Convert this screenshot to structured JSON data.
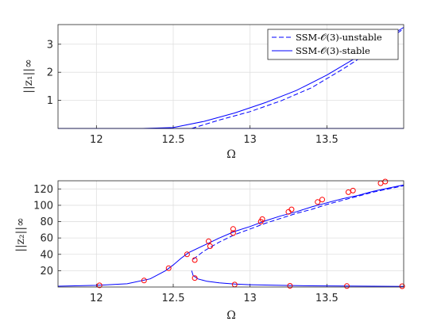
{
  "colors": {
    "curve": "#0000ff",
    "marker": "#ff0000",
    "axis": "#262626",
    "grid": "#dfdfdf"
  },
  "chart_data": [
    {
      "type": "line",
      "xlabel": "Ω",
      "ylabel": "||z₁||∞",
      "xlim": [
        11.75,
        14.0
      ],
      "ylim": [
        0,
        3.7
      ],
      "xticks": [
        12,
        12.5,
        13,
        13.5
      ],
      "xtick_labels": [
        "12",
        "12.5",
        "13",
        "13.5"
      ],
      "yticks": [
        1,
        2,
        3
      ],
      "ytick_labels": [
        "1",
        "2",
        "3"
      ],
      "grid": true,
      "legend_position": "top-right",
      "series": [
        {
          "name": "SSM-𝒪(3)-unstable",
          "style": "dashed",
          "x": [
            12.62,
            12.8,
            13.0,
            13.2,
            13.4,
            13.6,
            13.8,
            14.0
          ],
          "y": [
            0.0,
            0.3,
            0.6,
            0.98,
            1.45,
            2.1,
            2.8,
            3.55
          ]
        },
        {
          "name": "SSM-𝒪(3)-stable",
          "style": "solid",
          "x": [
            11.75,
            12.3,
            12.5,
            12.7,
            12.9,
            13.1,
            13.3,
            13.5,
            13.7,
            13.9,
            14.0
          ],
          "y": [
            0.0,
            0.0,
            0.03,
            0.25,
            0.55,
            0.92,
            1.35,
            1.9,
            2.55,
            3.25,
            3.6
          ]
        },
        {
          "name": "",
          "style": "solid",
          "x": [
            11.75,
            14.0
          ],
          "y": [
            0.0,
            0.0
          ]
        }
      ]
    },
    {
      "type": "line",
      "xlabel": "Ω",
      "ylabel": "||z₂||∞",
      "xlim": [
        11.75,
        14.0
      ],
      "ylim": [
        0,
        130
      ],
      "xticks": [
        12,
        12.5,
        13,
        13.5
      ],
      "xtick_labels": [
        "12",
        "12.5",
        "13",
        "13.5"
      ],
      "yticks": [
        20,
        40,
        60,
        80,
        100,
        120
      ],
      "ytick_labels": [
        "20",
        "40",
        "60",
        "80",
        "100",
        "120"
      ],
      "grid": true,
      "series": [
        {
          "name": "",
          "style": "solid",
          "x": [
            11.75,
            12.0,
            12.2,
            12.35,
            12.45,
            12.5,
            12.55,
            12.6,
            12.7,
            12.8,
            12.9,
            13.0,
            13.1,
            13.2,
            13.3,
            13.4,
            13.5,
            13.6,
            13.7,
            13.8,
            13.9,
            14.0
          ],
          "y": [
            1,
            2,
            4,
            10,
            20,
            27,
            35,
            42,
            51,
            60,
            68,
            74,
            81,
            87,
            92,
            98,
            103,
            108,
            112,
            117,
            121,
            125
          ]
        },
        {
          "name": "",
          "style": "dashed",
          "x": [
            12.63,
            12.7,
            12.8,
            12.9,
            13.0,
            13.1,
            13.2,
            13.3,
            13.4,
            13.5,
            13.6,
            13.7,
            13.8,
            13.9,
            14.0
          ],
          "y": [
            34,
            44,
            55,
            64,
            71,
            78,
            84,
            90,
            95,
            101,
            106,
            111,
            116,
            120,
            124
          ]
        },
        {
          "name": "",
          "style": "solid",
          "x": [
            12.62,
            12.63,
            12.66,
            12.72,
            12.8,
            12.9,
            13.0,
            13.2,
            13.4,
            13.6,
            13.8,
            14.0
          ],
          "y": [
            20,
            14,
            10,
            7,
            5,
            3.6,
            2.8,
            2.0,
            1.5,
            1.2,
            1.0,
            0.8
          ]
        }
      ],
      "markers": {
        "x": [
          12.02,
          12.31,
          12.47,
          12.59,
          12.64,
          12.64,
          12.73,
          12.74,
          12.89,
          12.89,
          13.07,
          13.08,
          13.25,
          13.27,
          13.44,
          13.47,
          13.64,
          13.67,
          13.85,
          13.88,
          13.26,
          13.63,
          13.99,
          12.9
        ],
        "y": [
          2,
          8,
          23,
          40,
          33,
          11,
          56,
          50,
          71,
          66,
          80,
          83,
          92,
          95,
          104,
          107,
          116,
          118,
          127,
          129,
          1.5,
          1.2,
          1.0,
          3
        ]
      }
    }
  ]
}
